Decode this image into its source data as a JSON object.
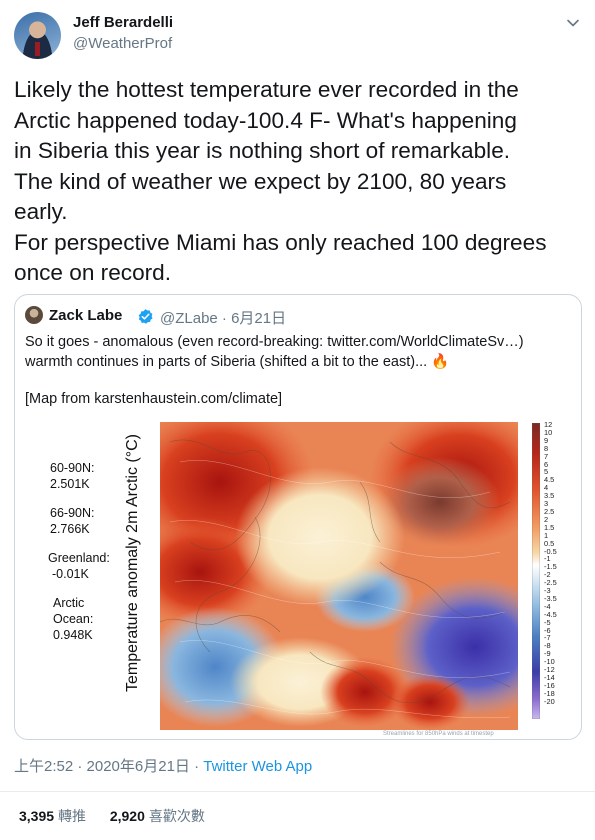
{
  "tweet": {
    "author_name": "Jeff Berardelli",
    "author_handle": "@WeatherProf",
    "text_lines": [
      "Likely the hottest temperature ever recorded in the",
      "Arctic happened today-100.4 F- What's happening",
      "in Siberia this year is nothing short of remarkable.",
      "The kind of weather we expect by 2100, 80 years",
      "early.",
      "For perspective Miami has only reached 100 degrees",
      "once on record."
    ],
    "timestamp": "上午2:52 · 2020年6月21日",
    "separator": " · ",
    "client": "Twitter Web App",
    "retweets_count": "3,395",
    "retweets_label": "轉推",
    "likes_count": "2,920",
    "likes_label": "喜歡次數"
  },
  "quoted": {
    "author_name": "Zack Labe",
    "author_handle": "@ZLabe · 6月21日",
    "line1": "So it goes - anomalous (even record-breaking: twitter.com/WorldClimateSv…)",
    "line2": "warmth continues in parts of Siberia (shifted a bit to the east)...",
    "emoji": "🔥",
    "line3": "[Map from karstenhaustein.com/climate]"
  },
  "map": {
    "y_title": "Temperature anomaly 2m Arctic (°C)",
    "stats": [
      {
        "label": "60-90N:",
        "value": "2.501K"
      },
      {
        "label": "66-90N:",
        "value": "2.766K"
      },
      {
        "label": "Greenland:",
        "value": "-0.01K"
      },
      {
        "label": "Arctic",
        "label2": "Ocean:",
        "value": "0.948K"
      }
    ],
    "colorbar_ticks": [
      "12",
      "10",
      "9",
      "8",
      "7",
      "6",
      "5",
      "4.5",
      "4",
      "3.5",
      "3",
      "2.5",
      "2",
      "1.5",
      "1",
      "0.5",
      "-0.5",
      "-1",
      "-1.5",
      "-2",
      "-2.5",
      "-3",
      "-3.5",
      "-4",
      "-4.5",
      "-5",
      "-6",
      "-7",
      "-8",
      "-9",
      "-10",
      "-12",
      "-14",
      "-16",
      "-18",
      "-20"
    ],
    "credit": "Streamlines for 850hPa winds at timestep"
  },
  "colors": {
    "link": "#1b95e0",
    "verified": "#1da1f2",
    "secondary_text": "#657786",
    "border": "#ccd6dd"
  },
  "icons": {
    "menu": "chevron-down-icon",
    "verified": "verified-badge-icon"
  }
}
